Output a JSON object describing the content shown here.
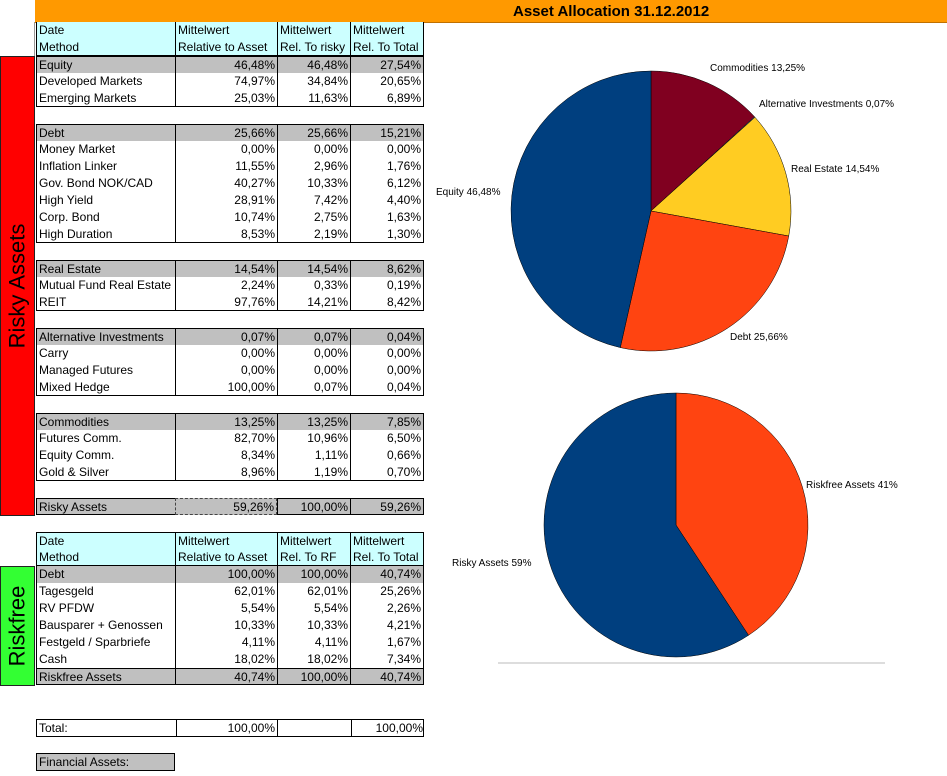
{
  "title": "Asset Allocation 31.12.2012",
  "side_labels": {
    "risky": "Risky Assets",
    "riskfree": "Riskfree"
  },
  "colors": {
    "title_bg": "#ff9900",
    "risky": "#ff0000",
    "riskfree": "#33ff33",
    "header_bg": "#ccffff",
    "grey": "#c0c0c0"
  },
  "risky_table": {
    "header": [
      [
        "Date",
        "Mittelwert",
        "Mittelwert",
        "Mittelwert"
      ],
      [
        "Method",
        "Relative to Asset",
        "Rel. To risky",
        "Rel. To Total"
      ]
    ],
    "groups": [
      {
        "rows": [
          [
            "Equity",
            "46,48%",
            "46,48%",
            "27,54%"
          ],
          [
            "Developed Markets",
            "74,97%",
            "34,84%",
            "20,65%"
          ],
          [
            "Emerging Markets",
            "25,03%",
            "11,63%",
            "6,89%"
          ]
        ]
      },
      {
        "rows": [
          [
            "Debt",
            "25,66%",
            "25,66%",
            "15,21%"
          ],
          [
            "Money Market",
            "0,00%",
            "0,00%",
            "0,00%"
          ],
          [
            "Inflation Linker",
            "11,55%",
            "2,96%",
            "1,76%"
          ],
          [
            "Gov. Bond NOK/CAD",
            "40,27%",
            "10,33%",
            "6,12%"
          ],
          [
            "High Yield",
            "28,91%",
            "7,42%",
            "4,40%"
          ],
          [
            "Corp. Bond",
            "10,74%",
            "2,75%",
            "1,63%"
          ],
          [
            "High Duration",
            "8,53%",
            "2,19%",
            "1,30%"
          ]
        ]
      },
      {
        "rows": [
          [
            "Real Estate",
            "14,54%",
            "14,54%",
            "8,62%"
          ],
          [
            "Mutual Fund Real Estate",
            "2,24%",
            "0,33%",
            "0,19%"
          ],
          [
            "REIT",
            "97,76%",
            "14,21%",
            "8,42%"
          ]
        ]
      },
      {
        "rows": [
          [
            "Alternative Investments",
            "0,07%",
            "0,07%",
            "0,04%"
          ],
          [
            "Carry",
            "0,00%",
            "0,00%",
            "0,00%"
          ],
          [
            "Managed Futures",
            "0,00%",
            "0,00%",
            "0,00%"
          ],
          [
            "Mixed Hedge",
            "100,00%",
            "0,07%",
            "0,04%"
          ]
        ]
      },
      {
        "rows": [
          [
            "Commodities",
            "13,25%",
            "13,25%",
            "7,85%"
          ],
          [
            "Futures Comm.",
            "82,70%",
            "10,96%",
            "6,50%"
          ],
          [
            "Equity Comm.",
            "8,34%",
            "1,11%",
            "0,66%"
          ],
          [
            "Gold & Silver",
            "8,96%",
            "1,19%",
            "0,70%"
          ]
        ]
      }
    ],
    "total": [
      "Risky Assets",
      "59,26%",
      "100,00%",
      "59,26%"
    ]
  },
  "riskfree_table": {
    "header": [
      [
        "Date",
        "Mittelwert",
        "Mittelwert",
        "Mittelwert"
      ],
      [
        "Method",
        "Relative to Asset",
        "Rel. To RF",
        "Rel. To Total"
      ]
    ],
    "rows": [
      [
        "Debt",
        "100,00%",
        "100,00%",
        "40,74%"
      ],
      [
        "Tagesgeld",
        "62,01%",
        "62,01%",
        "25,26%"
      ],
      [
        "RV PFDW",
        "5,54%",
        "5,54%",
        "2,26%"
      ],
      [
        "Bausparer + Genossen",
        "10,33%",
        "10,33%",
        "4,21%"
      ],
      [
        "Festgeld / Sparbriefe",
        "4,11%",
        "4,11%",
        "1,67%"
      ],
      [
        "Cash",
        "18,02%",
        "18,02%",
        "7,34%"
      ]
    ],
    "total": [
      "Riskfree Assets",
      "40,74%",
      "100,00%",
      "40,74%"
    ]
  },
  "grand_total": [
    "Total:",
    "100,00%",
    "",
    "100,00%"
  ],
  "financial_assets_label": "Financial Assets:",
  "chart_data": [
    {
      "type": "pie",
      "title": "",
      "slices": [
        {
          "label": "Commodities 13,25%",
          "value": 13.25,
          "color": "#800020"
        },
        {
          "label": "Alternative Investments 0,07%",
          "value": 0.07,
          "color": "#66ccff"
        },
        {
          "label": "Real Estate 14,54%",
          "value": 14.54,
          "color": "#ffcc22"
        },
        {
          "label": "Debt 25,66%",
          "value": 25.66,
          "color": "#ff4411"
        },
        {
          "label": "Equity 46,48%",
          "value": 46.48,
          "color": "#003f7f"
        }
      ]
    },
    {
      "type": "pie",
      "title": "",
      "slices": [
        {
          "label": "Riskfree Assets 41%",
          "value": 40.74,
          "color": "#ff4411"
        },
        {
          "label": "Risky Assets 59%",
          "value": 59.26,
          "color": "#003f7f"
        }
      ]
    }
  ]
}
